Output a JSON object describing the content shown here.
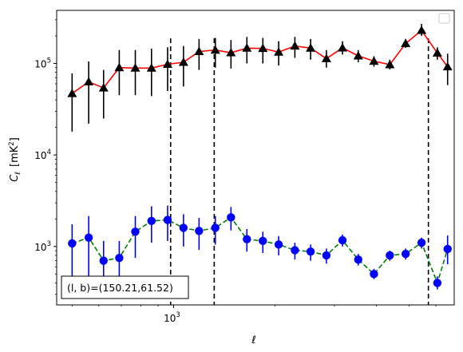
{
  "chart_data": {
    "type": "scatter",
    "title": "",
    "xlabel": "ℓ",
    "ylabel_main": "C",
    "ylabel_sub": "ℓ",
    "ylabel_unit": "[mK",
    "ylabel_unit_sup": "2",
    "ylabel_unit_end": "]",
    "xscale": "log",
    "yscale": "log",
    "xlim": [
      450,
      6800
    ],
    "ylim": [
      230,
      380000
    ],
    "x_ticks": [
      {
        "value": 1000,
        "base": "10",
        "exp": "3"
      }
    ],
    "y_ticks": [
      {
        "value": 1000,
        "base": "10",
        "exp": "3"
      },
      {
        "value": 10000,
        "base": "10",
        "exp": "4"
      },
      {
        "value": 100000,
        "base": "10",
        "exp": "5"
      }
    ],
    "grid": false,
    "legend": "top-right (empty)",
    "annotation": "(l, b)=(150.21,61.52)",
    "vertical_lines_x": [
      980,
      1320,
      5700
    ],
    "series": [
      {
        "marker": "triangle",
        "marker_color": "#000000",
        "errorbar_color": "#000000",
        "line_color": "#ff0000",
        "line_style": "solid",
        "points": [
          {
            "x": 500,
            "y": 47000,
            "lo": 18000,
            "hi": 78000
          },
          {
            "x": 560,
            "y": 63000,
            "lo": 22000,
            "hi": 105000
          },
          {
            "x": 620,
            "y": 54000,
            "lo": 25000,
            "hi": 85000
          },
          {
            "x": 690,
            "y": 90000,
            "lo": 45000,
            "hi": 140000
          },
          {
            "x": 770,
            "y": 89000,
            "lo": 45000,
            "hi": 140000
          },
          {
            "x": 860,
            "y": 89000,
            "lo": 44000,
            "hi": 145000
          },
          {
            "x": 960,
            "y": 98000,
            "lo": 50000,
            "hi": 150000
          },
          {
            "x": 1070,
            "y": 103000,
            "lo": 56000,
            "hi": 155000
          },
          {
            "x": 1190,
            "y": 135000,
            "lo": 85000,
            "hi": 185000
          },
          {
            "x": 1330,
            "y": 140000,
            "lo": 90000,
            "hi": 190000
          },
          {
            "x": 1480,
            "y": 131000,
            "lo": 88000,
            "hi": 180000
          },
          {
            "x": 1650,
            "y": 147000,
            "lo": 100000,
            "hi": 195000
          },
          {
            "x": 1840,
            "y": 146000,
            "lo": 100000,
            "hi": 190000
          },
          {
            "x": 2050,
            "y": 133000,
            "lo": 95000,
            "hi": 175000
          },
          {
            "x": 2290,
            "y": 155000,
            "lo": 115000,
            "hi": 195000
          },
          {
            "x": 2550,
            "y": 147000,
            "lo": 110000,
            "hi": 185000
          },
          {
            "x": 2840,
            "y": 113000,
            "lo": 90000,
            "hi": 140000
          },
          {
            "x": 3170,
            "y": 148000,
            "lo": 125000,
            "hi": 175000
          },
          {
            "x": 3530,
            "y": 121000,
            "lo": 103000,
            "hi": 140000
          },
          {
            "x": 3930,
            "y": 106000,
            "lo": 92000,
            "hi": 120000
          },
          {
            "x": 4380,
            "y": 97000,
            "lo": 86000,
            "hi": 110000
          },
          {
            "x": 4880,
            "y": 165000,
            "lo": 148000,
            "hi": 185000
          },
          {
            "x": 5440,
            "y": 230000,
            "lo": 200000,
            "hi": 270000
          },
          {
            "x": 6060,
            "y": 130000,
            "lo": 110000,
            "hi": 150000
          },
          {
            "x": 6500,
            "y": 92000,
            "lo": 58000,
            "hi": 128000
          }
        ]
      },
      {
        "marker": "circle",
        "marker_color": "#0000ff",
        "errorbar_color": "#0000ff",
        "line_color": "#008000",
        "line_style": "dashed",
        "points": [
          {
            "x": 500,
            "y": 1080,
            "lo": 440,
            "hi": 1750
          },
          {
            "x": 560,
            "y": 1250,
            "lo": 440,
            "hi": 2150
          },
          {
            "x": 620,
            "y": 700,
            "lo": 440,
            "hi": 1150
          },
          {
            "x": 690,
            "y": 750,
            "lo": 440,
            "hi": 1150
          },
          {
            "x": 770,
            "y": 1450,
            "lo": 750,
            "hi": 2150
          },
          {
            "x": 860,
            "y": 1900,
            "lo": 1100,
            "hi": 2750
          },
          {
            "x": 960,
            "y": 1950,
            "lo": 1150,
            "hi": 2800
          },
          {
            "x": 1070,
            "y": 1600,
            "lo": 1000,
            "hi": 2250
          },
          {
            "x": 1190,
            "y": 1480,
            "lo": 920,
            "hi": 2050
          },
          {
            "x": 1330,
            "y": 1600,
            "lo": 1050,
            "hi": 2150
          },
          {
            "x": 1480,
            "y": 2080,
            "lo": 1500,
            "hi": 2700
          },
          {
            "x": 1650,
            "y": 1200,
            "lo": 880,
            "hi": 1550
          },
          {
            "x": 1840,
            "y": 1150,
            "lo": 850,
            "hi": 1450
          },
          {
            "x": 2050,
            "y": 1050,
            "lo": 800,
            "hi": 1300
          },
          {
            "x": 2290,
            "y": 910,
            "lo": 720,
            "hi": 1100
          },
          {
            "x": 2550,
            "y": 880,
            "lo": 700,
            "hi": 1050
          },
          {
            "x": 2840,
            "y": 800,
            "lo": 650,
            "hi": 950
          },
          {
            "x": 3170,
            "y": 1170,
            "lo": 1000,
            "hi": 1350
          },
          {
            "x": 3530,
            "y": 720,
            "lo": 620,
            "hi": 830
          },
          {
            "x": 3930,
            "y": 500,
            "lo": 440,
            "hi": 570
          },
          {
            "x": 4380,
            "y": 800,
            "lo": 700,
            "hi": 900
          },
          {
            "x": 4880,
            "y": 830,
            "lo": 720,
            "hi": 950
          },
          {
            "x": 5440,
            "y": 1100,
            "lo": 950,
            "hi": 1250
          },
          {
            "x": 6060,
            "y": 400,
            "lo": 340,
            "hi": 470
          },
          {
            "x": 6500,
            "y": 940,
            "lo": 640,
            "hi": 1320
          }
        ]
      }
    ]
  }
}
